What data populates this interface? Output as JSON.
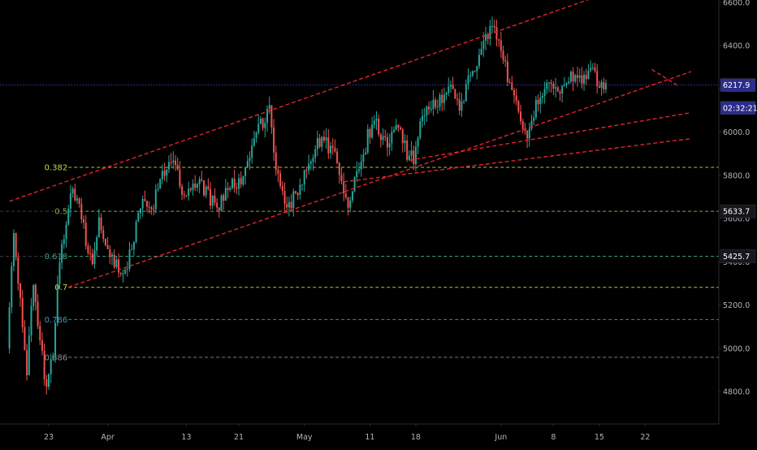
{
  "chart_data": {
    "type": "candlestick",
    "title": "",
    "xlabel": "",
    "ylabel": "",
    "ylim": [
      4600,
      6700
    ],
    "colors": {
      "background": "#000000",
      "up": "#26a69a",
      "down": "#ef5350",
      "trendline": "#e0242a",
      "grid": "#1c1c24",
      "axis_text": "#b2b5be"
    },
    "y_ticks": [
      "6600.0",
      "6400.0",
      "6200.0",
      "6000.0",
      "5800.0",
      "5600.0",
      "5400.0",
      "5200.0",
      "5000.0",
      "4800.0"
    ],
    "y_tick_values": [
      6600,
      6400,
      6200,
      6000,
      5800,
      5600,
      5400,
      5200,
      5000,
      4800
    ],
    "x_ticks": [
      "23",
      "Apr",
      "13",
      "21",
      "May",
      "11",
      "18",
      "Jun",
      "8",
      "15",
      "22"
    ],
    "x_tick_days": [
      0,
      9,
      21,
      29,
      39,
      49,
      56,
      69,
      77,
      84,
      91
    ],
    "x_range_days": [
      -6,
      98
    ],
    "price_labels": [
      {
        "text": "6217.9",
        "value": 6217.9,
        "color": "#2c2c8c",
        "line_style": "dotted",
        "line_color": "#3b3bb5"
      },
      {
        "text": "02:32:21",
        "value": 6112,
        "color": "#2c2c8c",
        "line_style": "none",
        "line_color": ""
      },
      {
        "text": "5633.7",
        "value": 5633.7,
        "color": "#16161c",
        "line_style": "dashed",
        "line_color": "#3a3a48"
      },
      {
        "text": "5425.7",
        "value": 5425.7,
        "color": "#16161c",
        "line_style": "dashed",
        "line_color": "#3a3a48"
      }
    ],
    "fib_levels": [
      {
        "label": "0.382",
        "value": 5837,
        "color": "#c8d84a"
      },
      {
        "label": "0.5",
        "value": 5633.7,
        "color": "#84a84a"
      },
      {
        "label": "0.618",
        "value": 5425.7,
        "color": "#3aa08a"
      },
      {
        "label": "0.7",
        "value": 5282,
        "color": "#c8d84a"
      },
      {
        "label": "0.786",
        "value": 5133,
        "color": "#3a9ab8"
      },
      {
        "label": "0.886",
        "value": 4958,
        "color": "#909090"
      }
    ],
    "fib_start_day": 3,
    "trendlines": [
      {
        "p1": [
          -6,
          5680
        ],
        "p2": [
          92,
          6715
        ]
      },
      {
        "p1": [
          3,
          5282
        ],
        "p2": [
          98,
          6280
        ]
      },
      {
        "p1": [
          55,
          5870
        ],
        "p2": [
          98,
          6090
        ]
      },
      {
        "p1": [
          45,
          5770
        ],
        "p2": [
          98,
          5970
        ]
      },
      {
        "p1": [
          92,
          6290
        ],
        "p2": [
          96,
          6215
        ]
      }
    ],
    "anchors": [
      [
        -6,
        5000
      ],
      [
        -5,
        5550
      ],
      [
        -4,
        5200
      ],
      [
        -3,
        4900
      ],
      [
        -2,
        5300
      ],
      [
        -1,
        5050
      ],
      [
        0,
        4790
      ],
      [
        1,
        5000
      ],
      [
        2,
        5400
      ],
      [
        3,
        5600
      ],
      [
        4,
        5750
      ],
      [
        5,
        5640
      ],
      [
        6,
        5500
      ],
      [
        7,
        5420
      ],
      [
        8,
        5600
      ],
      [
        9,
        5470
      ],
      [
        10,
        5420
      ],
      [
        11,
        5380
      ],
      [
        12,
        5360
      ],
      [
        13,
        5480
      ],
      [
        14,
        5600
      ],
      [
        15,
        5700
      ],
      [
        16,
        5640
      ],
      [
        17,
        5740
      ],
      [
        18,
        5810
      ],
      [
        19,
        5860
      ],
      [
        20,
        5830
      ],
      [
        21,
        5690
      ],
      [
        22,
        5740
      ],
      [
        23,
        5790
      ],
      [
        24,
        5740
      ],
      [
        25,
        5690
      ],
      [
        26,
        5650
      ],
      [
        27,
        5710
      ],
      [
        28,
        5770
      ],
      [
        29,
        5740
      ],
      [
        30,
        5800
      ],
      [
        31,
        5900
      ],
      [
        32,
        5990
      ],
      [
        33,
        6050
      ],
      [
        34,
        6130
      ],
      [
        35,
        5820
      ],
      [
        36,
        5720
      ],
      [
        37,
        5650
      ],
      [
        38,
        5720
      ],
      [
        39,
        5780
      ],
      [
        40,
        5840
      ],
      [
        41,
        5920
      ],
      [
        42,
        5980
      ],
      [
        43,
        5930
      ],
      [
        44,
        5880
      ],
      [
        45,
        5780
      ],
      [
        46,
        5680
      ],
      [
        47,
        5780
      ],
      [
        48,
        5860
      ],
      [
        49,
        5980
      ],
      [
        50,
        6050
      ],
      [
        51,
        5990
      ],
      [
        52,
        5950
      ],
      [
        53,
        6030
      ],
      [
        54,
        5980
      ],
      [
        55,
        5900
      ],
      [
        56,
        5870
      ],
      [
        57,
        6020
      ],
      [
        58,
        6090
      ],
      [
        59,
        6120
      ],
      [
        60,
        6150
      ],
      [
        61,
        6180
      ],
      [
        62,
        6200
      ],
      [
        63,
        6080
      ],
      [
        64,
        6200
      ],
      [
        65,
        6280
      ],
      [
        66,
        6340
      ],
      [
        67,
        6440
      ],
      [
        68,
        6510
      ],
      [
        69,
        6400
      ],
      [
        70,
        6300
      ],
      [
        71,
        6200
      ],
      [
        72,
        6080
      ],
      [
        73,
        5980
      ],
      [
        74,
        6050
      ],
      [
        75,
        6160
      ],
      [
        76,
        6220
      ],
      [
        77,
        6250
      ],
      [
        78,
        6200
      ],
      [
        79,
        6230
      ],
      [
        80,
        6270
      ],
      [
        81,
        6220
      ],
      [
        82,
        6250
      ],
      [
        83,
        6290
      ],
      [
        84,
        6240
      ],
      [
        85,
        6210
      ]
    ]
  }
}
